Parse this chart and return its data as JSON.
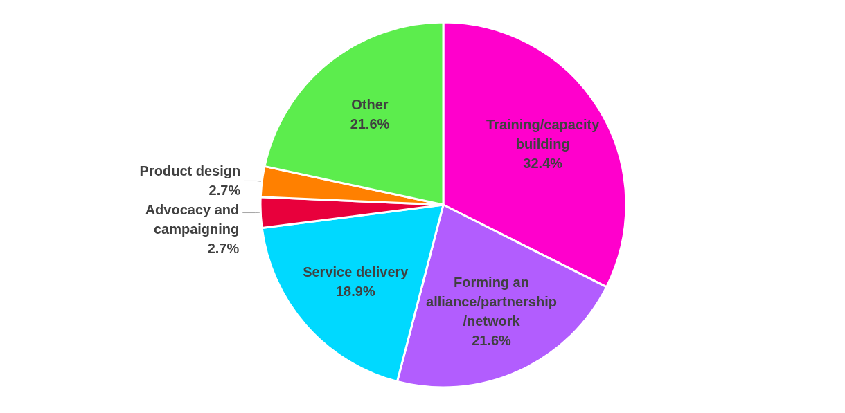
{
  "chart_data": {
    "type": "pie",
    "categories": [
      "Training/capacity\nbuilding",
      "Forming an\nalliance/partnership\n/network",
      "Service delivery",
      "Advocacy and\ncampaigning",
      "Product design",
      "Other"
    ],
    "values": [
      32.4,
      21.6,
      18.9,
      2.7,
      2.7,
      21.6
    ],
    "colors": [
      "#ff00cc",
      "#b25dfe",
      "#00d9ff",
      "#e8003c",
      "#ff8000",
      "#5ced4d"
    ],
    "value_labels": [
      "32.4%",
      "21.6%",
      "18.9%",
      "2.7%",
      "2.7%",
      "21.6%"
    ],
    "legend": false
  }
}
